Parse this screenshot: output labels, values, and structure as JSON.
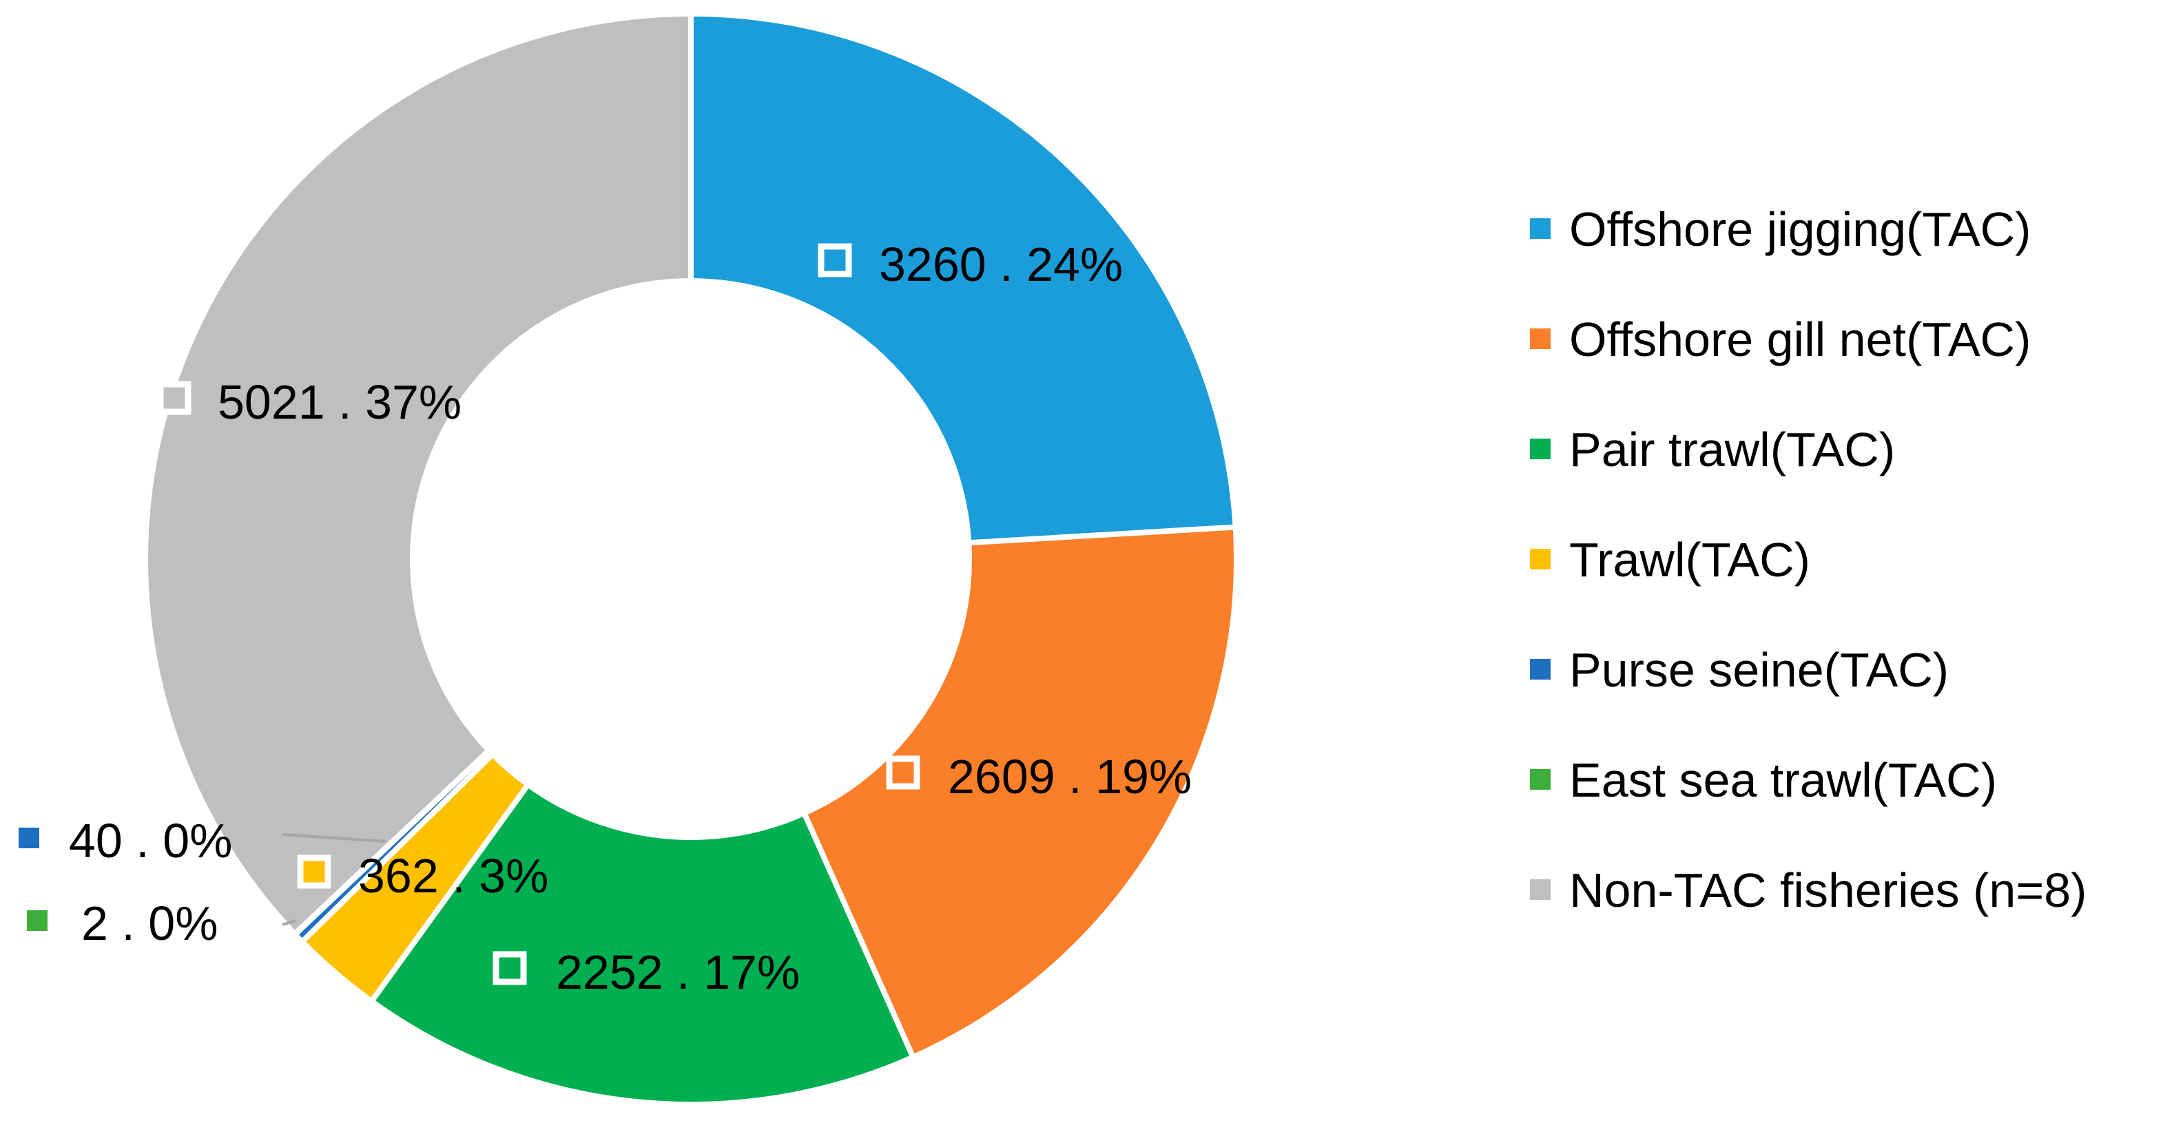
{
  "chart_data": {
    "type": "donut",
    "title": "",
    "legend_position": "right",
    "slices": [
      {
        "name": "Offshore jigging(TAC)",
        "value": 3260,
        "label": "3260 . 24%",
        "color": "#1B9DD9"
      },
      {
        "name": "Offshore gill net(TAC)",
        "value": 2609,
        "label": "2609 . 19%",
        "color": "#FB7E29"
      },
      {
        "name": "Pair trawl(TAC)",
        "value": 2252,
        "label": "2252 . 17%",
        "color": "#00AF50"
      },
      {
        "name": "Trawl(TAC)",
        "value": 362,
        "label": "362 . 3%",
        "color": "#FFC000"
      },
      {
        "name": "Purse seine(TAC)",
        "value": 40,
        "label": "40 .  0%",
        "color": "#1F6FC0"
      },
      {
        "name": "East sea trawl(TAC)",
        "value": 2,
        "label": "2 .  0%",
        "color": "#3DAE3B"
      },
      {
        "name": "Non-TAC fisheries (n=8)",
        "value": 5021,
        "label": "5021 . 37%",
        "color": "#BFBFBF"
      }
    ]
  }
}
